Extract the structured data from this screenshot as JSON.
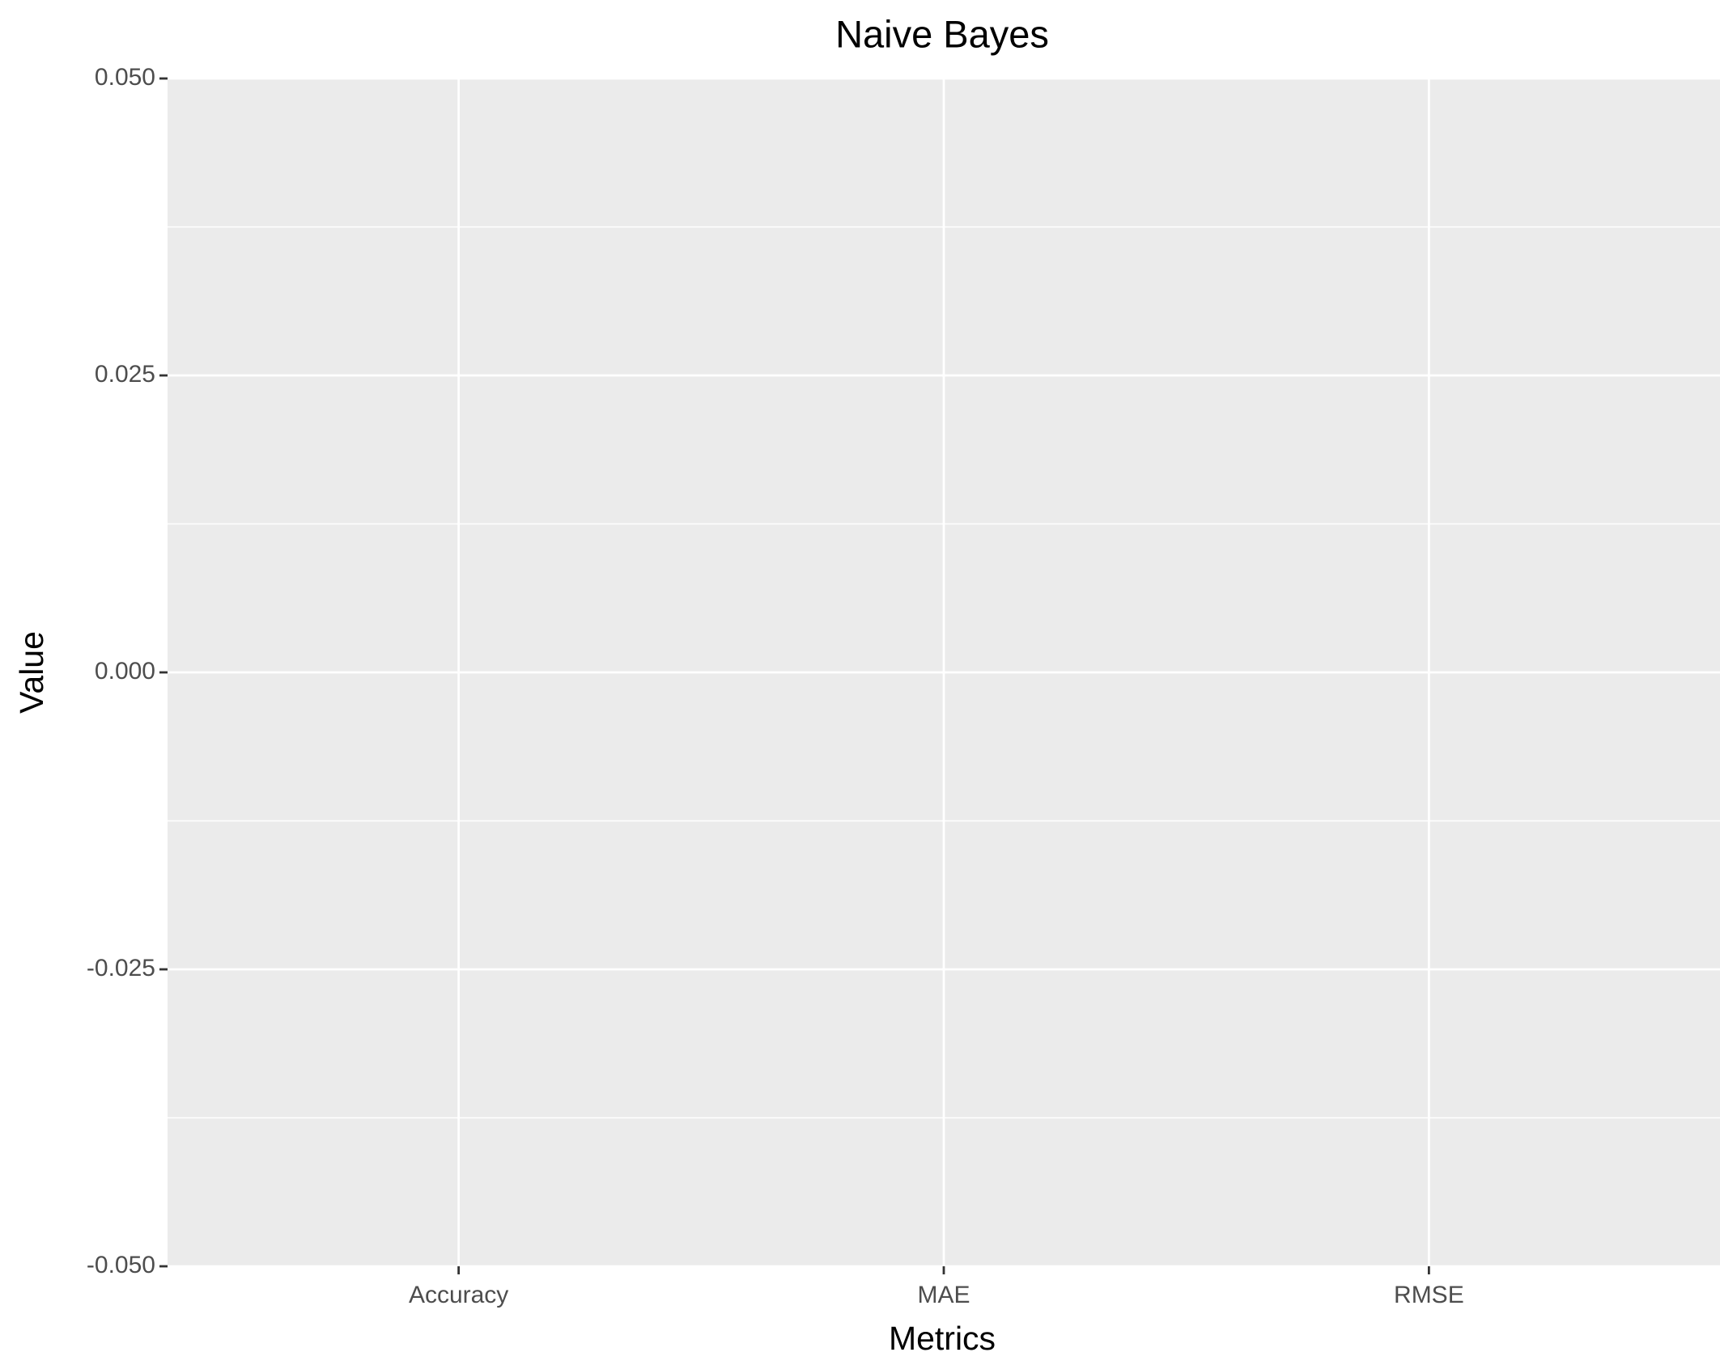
{
  "chart_data": {
    "type": "bar",
    "title": "Naive Bayes",
    "x_label": "Metrics",
    "y_label": "Value",
    "categories": [
      "Accuracy",
      "MAE",
      "RMSE"
    ],
    "values": [
      0,
      0,
      0
    ],
    "color": "#595959",
    "ylim": [
      -0.05,
      0.05
    ],
    "yticks": [
      {
        "value": 0.05,
        "label": "0.050"
      },
      {
        "value": 0.025,
        "label": "0.025"
      },
      {
        "value": 0,
        "label": "0.000"
      },
      {
        "value": -0.025,
        "label": "-0.025"
      },
      {
        "value": -0.05,
        "label": "-0.050"
      }
    ],
    "yminor": [
      0.0375,
      0.0125,
      -0.0125,
      -0.0375
    ],
    "grid": true
  }
}
